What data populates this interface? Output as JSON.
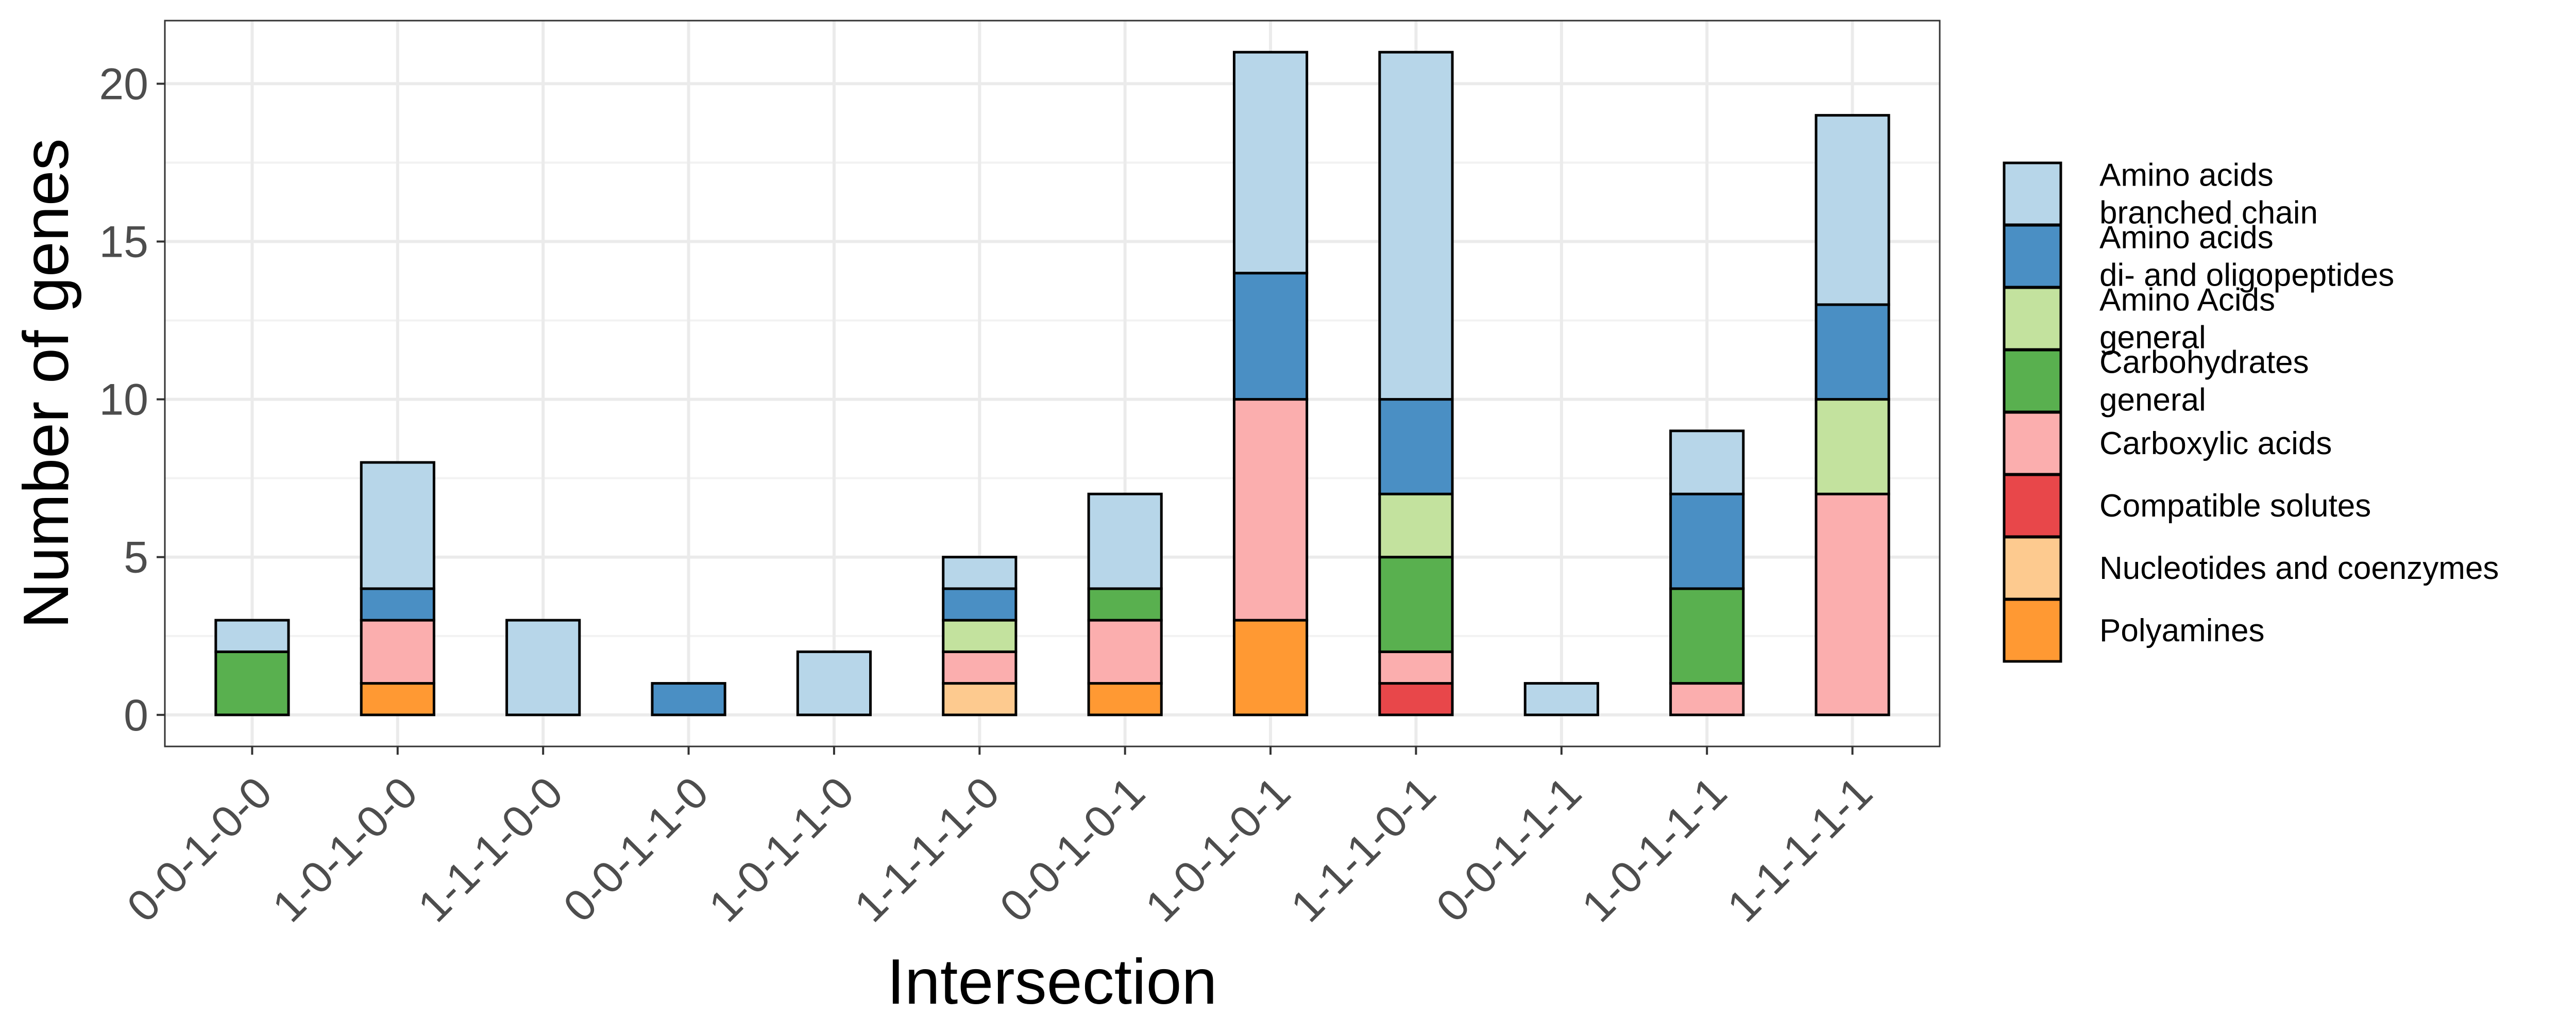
{
  "chart_data": {
    "type": "bar",
    "stacked": true,
    "xlabel": "Intersection",
    "ylabel": "Number of genes",
    "ylim": [
      -1,
      22
    ],
    "yticks": [
      0,
      5,
      10,
      15,
      20
    ],
    "grid": true,
    "legend_position": "right",
    "categories": [
      "0-0-1-0-0",
      "1-0-1-0-0",
      "1-1-1-0-0",
      "0-0-1-1-0",
      "1-0-1-1-0",
      "1-1-1-1-0",
      "0-0-1-0-1",
      "1-0-1-0-1",
      "1-1-1-0-1",
      "0-0-1-1-1",
      "1-0-1-1-1",
      "1-1-1-1-1"
    ],
    "series": [
      {
        "name": "Polyamines",
        "color": "#ff9933",
        "values": [
          0,
          1,
          0,
          0,
          0,
          0,
          1,
          3,
          0,
          0,
          0,
          0
        ]
      },
      {
        "name": "Nucleotides and coenzymes",
        "color": "#fdca8f",
        "values": [
          0,
          0,
          0,
          0,
          0,
          1,
          0,
          0,
          0,
          0,
          0,
          0
        ]
      },
      {
        "name": "Compatible solutes",
        "color": "#e8474a",
        "values": [
          0,
          0,
          0,
          0,
          0,
          0,
          0,
          0,
          1,
          0,
          0,
          0
        ]
      },
      {
        "name": "Carboxylic acids",
        "color": "#fbaeae",
        "values": [
          0,
          2,
          0,
          0,
          0,
          1,
          2,
          7,
          1,
          0,
          1,
          7
        ]
      },
      {
        "name": "Carbohydrates general",
        "lines": [
          "Carbohydrates",
          "general"
        ],
        "color": "#59b04f",
        "values": [
          2,
          0,
          0,
          0,
          0,
          0,
          1,
          0,
          3,
          0,
          3,
          0
        ]
      },
      {
        "name": "Amino Acids general",
        "lines": [
          "Amino Acids",
          "general"
        ],
        "color": "#c3e29e",
        "values": [
          0,
          0,
          0,
          0,
          0,
          1,
          0,
          0,
          2,
          0,
          0,
          3
        ]
      },
      {
        "name": "Amino acids di- and oligopeptides",
        "lines": [
          "Amino acids",
          "di- and oligopeptides"
        ],
        "color": "#4a8fc4",
        "values": [
          0,
          1,
          0,
          1,
          0,
          1,
          0,
          4,
          3,
          0,
          3,
          3
        ]
      },
      {
        "name": "Amino acids branched chain",
        "lines": [
          "Amino acids",
          "branched chain"
        ],
        "color": "#b7d6e9",
        "values": [
          1,
          4,
          3,
          0,
          2,
          1,
          3,
          7,
          11,
          1,
          2,
          6
        ]
      }
    ],
    "legend_order": [
      "Amino acids branched chain",
      "Amino acids di- and oligopeptides",
      "Amino Acids general",
      "Carbohydrates general",
      "Carboxylic acids",
      "Compatible solutes",
      "Nucleotides and coenzymes",
      "Polyamines"
    ]
  }
}
